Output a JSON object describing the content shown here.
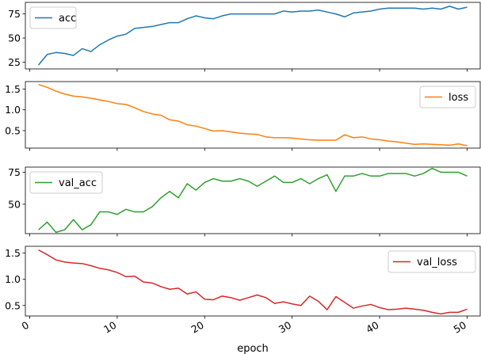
{
  "chart_data": {
    "type": "line",
    "xlabel": "epoch",
    "xlim": [
      -0.5,
      51.5
    ],
    "xticks": [
      0,
      10,
      20,
      30,
      40,
      50
    ],
    "x": [
      1,
      2,
      3,
      4,
      5,
      6,
      7,
      8,
      9,
      10,
      11,
      12,
      13,
      14,
      15,
      16,
      17,
      18,
      19,
      20,
      21,
      22,
      23,
      24,
      25,
      26,
      27,
      28,
      29,
      30,
      31,
      32,
      33,
      34,
      35,
      36,
      37,
      38,
      39,
      40,
      41,
      42,
      43,
      44,
      45,
      46,
      47,
      48,
      49,
      50
    ],
    "subplots": [
      {
        "series": [
          {
            "name": "acc",
            "color": "#1f77b4",
            "values": [
              22,
              33,
              35,
              34,
              32,
              39,
              36,
              43,
              48,
              52,
              54,
              60,
              61,
              62,
              64,
              66,
              66,
              70,
              73,
              71,
              70,
              73,
              75,
              75,
              75,
              75,
              75,
              75,
              78,
              77,
              78,
              78,
              79,
              77,
              75,
              72,
              76,
              77,
              78,
              80,
              81,
              81,
              81,
              81,
              80,
              81,
              80,
              83,
              80,
              82
            ]
          }
        ],
        "ylim": [
          18,
          87
        ],
        "yticks": [
          25,
          50,
          75
        ],
        "legend": "top-left"
      },
      {
        "series": [
          {
            "name": "loss",
            "color": "#ff7f0e",
            "values": [
              1.61,
              1.54,
              1.45,
              1.38,
              1.33,
              1.31,
              1.28,
              1.24,
              1.2,
              1.15,
              1.13,
              1.05,
              0.96,
              0.9,
              0.87,
              0.76,
              0.73,
              0.64,
              0.61,
              0.55,
              0.49,
              0.5,
              0.47,
              0.44,
              0.42,
              0.41,
              0.35,
              0.33,
              0.33,
              0.32,
              0.3,
              0.28,
              0.27,
              0.27,
              0.27,
              0.4,
              0.33,
              0.35,
              0.3,
              0.28,
              0.25,
              0.23,
              0.2,
              0.17,
              0.18,
              0.17,
              0.16,
              0.15,
              0.18,
              0.14
            ]
          }
        ],
        "ylim": [
          0.08,
          1.68
        ],
        "yticks": [
          0.5,
          1.0,
          1.5
        ],
        "ytick_labels": [
          "0.5",
          "1.0",
          "1.5"
        ],
        "legend": "upper-right"
      },
      {
        "series": [
          {
            "name": "val_acc",
            "color": "#2ca02c",
            "values": [
              30,
              36,
              28,
              30,
              38,
              30,
              34,
              44,
              44,
              42,
              46,
              44,
              44,
              48,
              55,
              60,
              55,
              66,
              61,
              67,
              70,
              68,
              68,
              70,
              68,
              64,
              68,
              72,
              67,
              67,
              70,
              66,
              70,
              73,
              60,
              72,
              72,
              74,
              72,
              72,
              74,
              74,
              74,
              72,
              74,
              78,
              75,
              75,
              75,
              72
            ]
          }
        ],
        "ylim": [
          27,
          79
        ],
        "yticks": [
          50,
          75
        ],
        "legend": "top-left"
      },
      {
        "series": [
          {
            "name": "val_loss",
            "color": "#d62728",
            "values": [
              1.56,
              1.47,
              1.37,
              1.33,
              1.31,
              1.3,
              1.26,
              1.21,
              1.18,
              1.13,
              1.05,
              1.06,
              0.95,
              0.93,
              0.86,
              0.81,
              0.83,
              0.72,
              0.76,
              0.62,
              0.61,
              0.68,
              0.65,
              0.6,
              0.65,
              0.7,
              0.65,
              0.54,
              0.57,
              0.53,
              0.5,
              0.68,
              0.58,
              0.42,
              0.67,
              0.56,
              0.45,
              0.49,
              0.52,
              0.46,
              0.42,
              0.43,
              0.45,
              0.43,
              0.41,
              0.37,
              0.34,
              0.37,
              0.37,
              0.43
            ]
          }
        ],
        "ylim": [
          0.3,
          1.63
        ],
        "yticks": [
          0.5,
          1.0,
          1.5
        ],
        "ytick_labels": [
          "0.5",
          "1.0",
          "1.5"
        ],
        "legend": "upper-right"
      }
    ]
  }
}
